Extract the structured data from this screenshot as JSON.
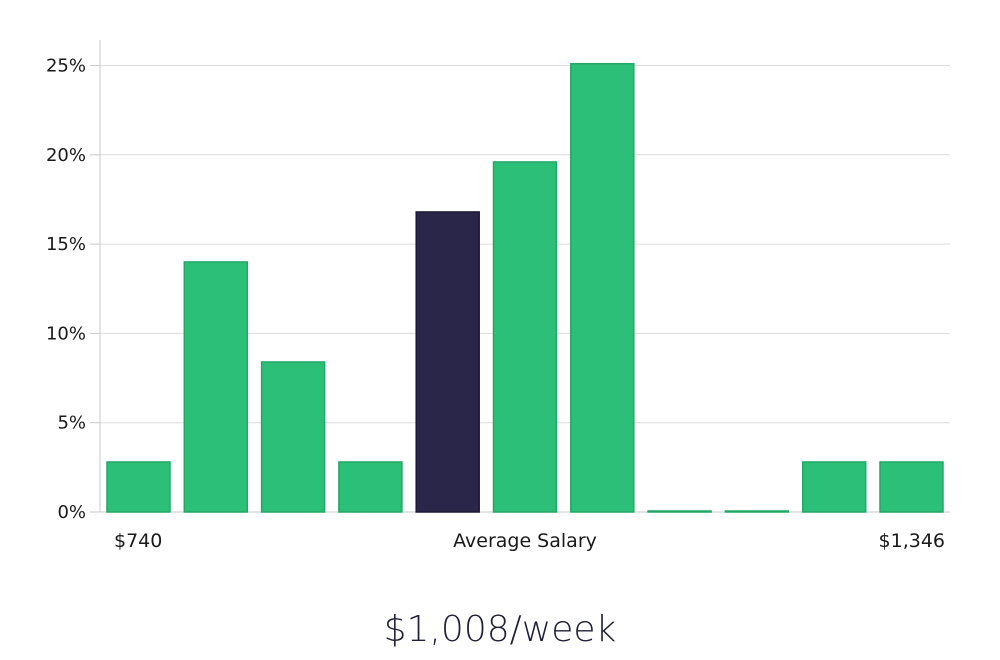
{
  "headline": "$1,008/week",
  "chart_data": {
    "type": "bar",
    "values": [
      2.8,
      14.0,
      8.4,
      2.8,
      16.8,
      19.6,
      25.1,
      0.05,
      0.05,
      2.8,
      2.8
    ],
    "highlight_index": 4,
    "yticks": [
      "0%",
      "5%",
      "10%",
      "15%",
      "20%",
      "25%"
    ],
    "ylim": [
      0,
      26.5
    ],
    "x_labels": {
      "left": "$740",
      "center": "Average Salary",
      "right": "$1,346"
    },
    "grid": true,
    "colors": {
      "bar": "#2bbf78",
      "highlight": "#29264a",
      "grid": "#dcdcdc",
      "axis": "#c8c8c8"
    }
  }
}
